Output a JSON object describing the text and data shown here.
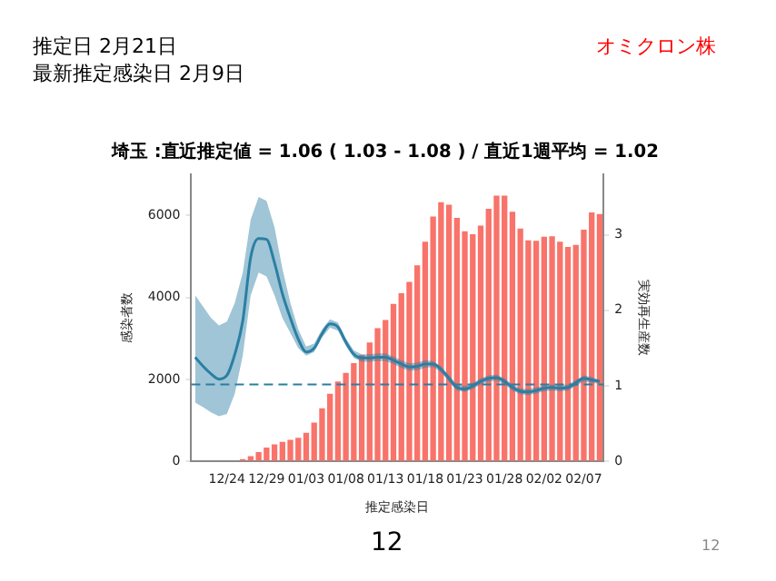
{
  "chart_data": {
    "type": "bar",
    "title": "埼玉 :直近推定値 = 1.06 ( 1.03 - 1.08 ) / 直近1週平均 = 1.02",
    "xlabel": "推定感染日",
    "ylabel": "感染者数",
    "y2label": "実効再生産数",
    "annotations": [
      "推定日  2月21日",
      "最新推定感染日  2月9日",
      "オミクロン株",
      "12",
      "12"
    ],
    "categories": [
      null,
      null,
      null,
      null,
      "12/24",
      null,
      null,
      null,
      null,
      "12/29",
      null,
      null,
      null,
      null,
      "01/03",
      null,
      null,
      null,
      null,
      "01/08",
      null,
      null,
      null,
      null,
      "01/13",
      null,
      null,
      null,
      null,
      "01/18",
      null,
      null,
      null,
      null,
      "01/23",
      null,
      null,
      null,
      null,
      "01/28",
      null,
      null,
      null,
      null,
      "02/02",
      null,
      null,
      null,
      null,
      "02/07",
      null,
      null
    ],
    "series": [
      {
        "color": "#f8736a",
        "values": [
          0,
          0,
          0,
          0,
          null,
          null,
          60,
          130,
          230,
          340,
          420,
          480,
          530,
          580,
          700,
          950,
          1300,
          1650,
          1950,
          2160,
          2400,
          2600,
          2900,
          3250,
          3450,
          3840,
          4100,
          4380,
          4780,
          5360,
          5970,
          6320,
          6260,
          5940,
          5610,
          5540,
          5750,
          6160,
          6480,
          6480,
          6090,
          5680,
          5390,
          5380,
          5480,
          5490,
          5360,
          5230,
          5280,
          5650,
          6070,
          6030
        ]
      },
      {
        "type": "line",
        "axis": "y2",
        "color": "#2a7fa3",
        "values": [
          1.38,
          1.26,
          1.16,
          1.09,
          1.14,
          1.42,
          1.86,
          2.7,
          2.95,
          2.94,
          2.63,
          2.22,
          1.9,
          1.62,
          1.45,
          1.5,
          1.69,
          1.82,
          1.78,
          1.58,
          1.42,
          1.37,
          1.37,
          1.38,
          1.38,
          1.34,
          1.29,
          1.25,
          1.26,
          1.29,
          1.29,
          1.22,
          1.1,
          0.98,
          0.96,
          1.0,
          1.06,
          1.1,
          1.11,
          1.06,
          0.98,
          0.93,
          0.92,
          0.94,
          0.97,
          0.98,
          0.97,
          0.98,
          1.04,
          1.1,
          1.08,
          1.06
        ],
        "lower": [
          0.78,
          0.72,
          0.65,
          0.6,
          0.63,
          0.9,
          1.4,
          2.2,
          2.5,
          2.45,
          2.2,
          1.9,
          1.7,
          1.5,
          1.4,
          1.45,
          1.64,
          1.77,
          1.73,
          1.53,
          1.37,
          1.32,
          1.32,
          1.33,
          1.33,
          1.29,
          1.24,
          1.2,
          1.21,
          1.24,
          1.25,
          1.18,
          1.06,
          0.94,
          0.92,
          0.96,
          1.02,
          1.06,
          1.07,
          1.02,
          0.94,
          0.89,
          0.88,
          0.9,
          0.93,
          0.94,
          0.93,
          0.94,
          1.0,
          1.06,
          1.04,
          1.03
        ],
        "upper": [
          2.2,
          2.05,
          1.9,
          1.8,
          1.85,
          2.1,
          2.5,
          3.2,
          3.5,
          3.45,
          3.1,
          2.55,
          2.1,
          1.75,
          1.52,
          1.56,
          1.75,
          1.88,
          1.84,
          1.63,
          1.47,
          1.42,
          1.42,
          1.43,
          1.43,
          1.39,
          1.34,
          1.3,
          1.31,
          1.34,
          1.33,
          1.26,
          1.14,
          1.02,
          1.0,
          1.04,
          1.1,
          1.14,
          1.15,
          1.1,
          1.02,
          0.97,
          0.96,
          0.98,
          1.01,
          1.02,
          1.01,
          1.02,
          1.08,
          1.14,
          1.12,
          1.08
        ]
      }
    ],
    "ylim": [
      0,
      7000
    ],
    "yticks": [
      0,
      2000,
      4000,
      6000
    ],
    "y2lim": [
      0,
      3.8
    ],
    "y2ticks": [
      0,
      1,
      2,
      3
    ],
    "ref_lines": [
      {
        "axis": "y2",
        "value": 1.02,
        "color": "#2a7fa3",
        "line_style": "dashed"
      }
    ],
    "grid": false,
    "legend": false
  }
}
